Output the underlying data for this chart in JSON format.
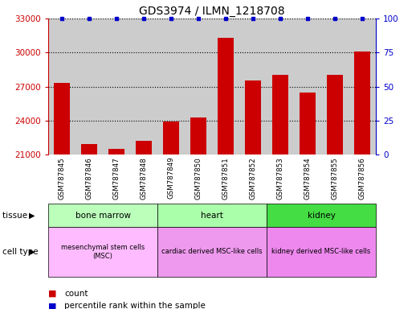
{
  "title": "GDS3974 / ILMN_1218708",
  "samples": [
    "GSM787845",
    "GSM787846",
    "GSM787847",
    "GSM787848",
    "GSM787849",
    "GSM787850",
    "GSM787851",
    "GSM787852",
    "GSM787853",
    "GSM787854",
    "GSM787855",
    "GSM787856"
  ],
  "counts": [
    27300,
    21900,
    21500,
    22200,
    23900,
    24300,
    31300,
    27500,
    28000,
    26500,
    28000,
    30100
  ],
  "percentile_ranks": [
    100,
    100,
    100,
    100,
    100,
    100,
    100,
    100,
    100,
    100,
    100,
    100
  ],
  "ylim_left": [
    21000,
    33000
  ],
  "ylim_right": [
    0,
    100
  ],
  "yticks_left": [
    21000,
    24000,
    27000,
    30000,
    33000
  ],
  "yticks_right": [
    0,
    25,
    50,
    75,
    100
  ],
  "bar_color": "#cc0000",
  "dot_color": "#0000cc",
  "tissue_groups": [
    {
      "label": "bone marrow",
      "start": 0,
      "end": 4,
      "color": "#bbffbb"
    },
    {
      "label": "heart",
      "start": 4,
      "end": 8,
      "color": "#aaffaa"
    },
    {
      "label": "kidney",
      "start": 8,
      "end": 12,
      "color": "#44dd44"
    }
  ],
  "cell_type_groups": [
    {
      "label": "mesenchymal stem cells\n(MSC)",
      "start": 0,
      "end": 4,
      "color": "#ffbbff"
    },
    {
      "label": "cardiac derived MSC-like cells",
      "start": 4,
      "end": 8,
      "color": "#ee99ee"
    },
    {
      "label": "kidney derived MSC-like cells",
      "start": 8,
      "end": 12,
      "color": "#ee88ee"
    }
  ],
  "tissue_label": "tissue",
  "cell_type_label": "cell type",
  "legend_count_label": "count",
  "legend_pct_label": "percentile rank within the sample",
  "xtick_bg_color": "#cccccc"
}
